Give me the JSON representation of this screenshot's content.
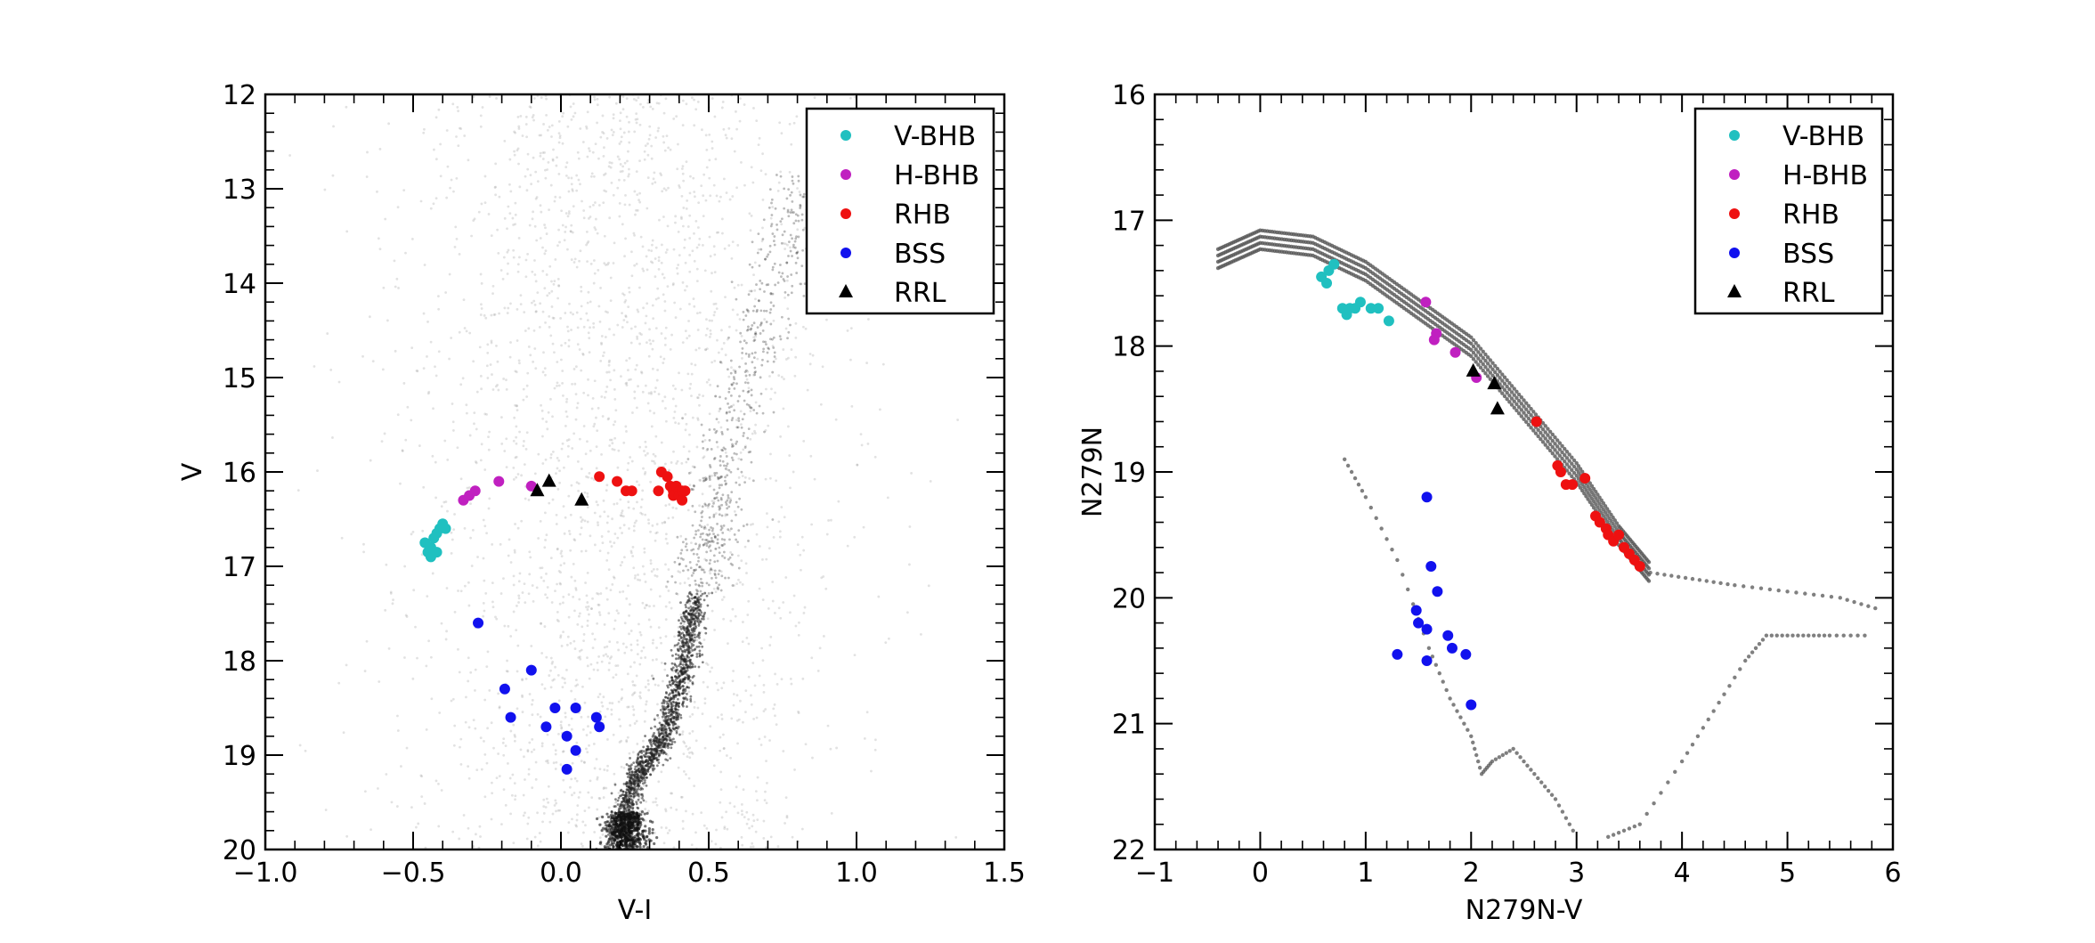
{
  "chart_data": [
    {
      "type": "scatter",
      "id": "left",
      "title": "",
      "xlabel": "V-I",
      "ylabel": "V",
      "xlim": [
        -1.0,
        1.5
      ],
      "ylim": [
        12,
        20
      ],
      "y_inverted": true,
      "xticks": [
        -1.0,
        -0.5,
        0.0,
        0.5,
        1.0,
        1.5
      ],
      "xtick_labels": [
        "−1.0",
        "−0.5",
        "0.0",
        "0.5",
        "1.0",
        "1.5"
      ],
      "yticks": [
        12,
        13,
        14,
        15,
        16,
        17,
        18,
        19,
        20
      ],
      "ytick_labels": [
        "12",
        "13",
        "14",
        "15",
        "16",
        "17",
        "18",
        "19",
        "20"
      ],
      "legend_position": "top-right",
      "background": {
        "name": "Field stars (grey cloud)",
        "color": "#8c8c8c",
        "description_points": {
          "red_giant_branch": [
            [
              0.2,
              19.9
            ],
            [
              0.23,
              19.4
            ],
            [
              0.28,
              19.1
            ],
            [
              0.35,
              18.8
            ],
            [
              0.4,
              18.3
            ],
            [
              0.43,
              17.8
            ],
            [
              0.46,
              17.3
            ],
            [
              0.5,
              16.8
            ],
            [
              0.53,
              16.4
            ],
            [
              0.56,
              15.8
            ],
            [
              0.62,
              15.0
            ],
            [
              0.7,
              14.2
            ],
            [
              0.78,
              13.4
            ],
            [
              0.85,
              12.8
            ]
          ],
          "main_sequence_turnoff": [
            0.22,
            19.6
          ]
        }
      },
      "series": [
        {
          "name": "V-BHB",
          "color": "#20c0c0",
          "marker": "circle",
          "points": [
            [
              -0.46,
              16.75
            ],
            [
              -0.45,
              16.85
            ],
            [
              -0.44,
              16.9
            ],
            [
              -0.44,
              16.8
            ],
            [
              -0.43,
              16.7
            ],
            [
              -0.42,
              16.85
            ],
            [
              -0.42,
              16.65
            ],
            [
              -0.41,
              16.6
            ],
            [
              -0.4,
              16.55
            ],
            [
              -0.39,
              16.6
            ]
          ]
        },
        {
          "name": "H-BHB",
          "color": "#c020c0",
          "marker": "circle",
          "points": [
            [
              -0.33,
              16.3
            ],
            [
              -0.31,
              16.25
            ],
            [
              -0.29,
              16.2
            ],
            [
              -0.21,
              16.1
            ],
            [
              -0.1,
              16.15
            ]
          ]
        },
        {
          "name": "RHB",
          "color": "#ee1111",
          "marker": "circle",
          "points": [
            [
              0.13,
              16.05
            ],
            [
              0.19,
              16.1
            ],
            [
              0.22,
              16.2
            ],
            [
              0.24,
              16.2
            ],
            [
              0.33,
              16.2
            ],
            [
              0.34,
              16.0
            ],
            [
              0.37,
              16.15
            ],
            [
              0.38,
              16.2
            ],
            [
              0.38,
              16.25
            ],
            [
              0.39,
              16.15
            ],
            [
              0.4,
              16.2
            ],
            [
              0.4,
              16.25
            ],
            [
              0.41,
              16.2
            ],
            [
              0.41,
              16.3
            ],
            [
              0.42,
              16.2
            ],
            [
              0.36,
              16.05
            ]
          ]
        },
        {
          "name": "BSS",
          "color": "#1111ee",
          "marker": "circle",
          "points": [
            [
              -0.28,
              17.6
            ],
            [
              -0.19,
              18.3
            ],
            [
              -0.17,
              18.6
            ],
            [
              -0.1,
              18.1
            ],
            [
              -0.05,
              18.7
            ],
            [
              -0.02,
              18.5
            ],
            [
              0.02,
              18.8
            ],
            [
              0.05,
              18.5
            ],
            [
              0.05,
              18.95
            ],
            [
              0.02,
              19.15
            ],
            [
              0.12,
              18.6
            ],
            [
              0.13,
              18.7
            ]
          ]
        },
        {
          "name": "RRL",
          "color": "#000000",
          "marker": "triangle",
          "points": [
            [
              -0.08,
              16.2
            ],
            [
              -0.04,
              16.1
            ],
            [
              0.07,
              16.3
            ]
          ]
        }
      ]
    },
    {
      "type": "scatter",
      "id": "right",
      "title": "",
      "xlabel": "N279N-V",
      "ylabel": "N279N",
      "xlim": [
        -1,
        6
      ],
      "ylim": [
        16,
        22
      ],
      "y_inverted": true,
      "xticks": [
        -1,
        0,
        1,
        2,
        3,
        4,
        5,
        6
      ],
      "xtick_labels": [
        "−1",
        "0",
        "1",
        "2",
        "3",
        "4",
        "5",
        "6"
      ],
      "yticks": [
        16,
        17,
        18,
        19,
        20,
        21,
        22
      ],
      "ytick_labels": [
        "16",
        "17",
        "18",
        "19",
        "20",
        "21",
        "22"
      ],
      "legend_position": "top-right",
      "background": {
        "name": "Models (grey dotted tracks)",
        "color": "#555555",
        "hb_model_ridge": [
          [
            -0.4,
            17.3
          ],
          [
            0.0,
            17.15
          ],
          [
            0.5,
            17.2
          ],
          [
            1.0,
            17.4
          ],
          [
            1.5,
            17.7
          ],
          [
            2.0,
            18.0
          ],
          [
            2.5,
            18.5
          ],
          [
            3.0,
            19.0
          ],
          [
            3.4,
            19.5
          ],
          [
            3.7,
            19.8
          ]
        ],
        "isochrone_a": [
          [
            0.8,
            18.9
          ],
          [
            1.0,
            19.2
          ],
          [
            1.3,
            19.7
          ],
          [
            1.6,
            20.4
          ],
          [
            1.8,
            20.8
          ],
          [
            2.0,
            21.1
          ],
          [
            2.1,
            21.4
          ],
          [
            2.2,
            21.3
          ],
          [
            2.4,
            21.2
          ],
          [
            2.6,
            21.4
          ],
          [
            2.8,
            21.6
          ],
          [
            3.0,
            21.9
          ]
        ],
        "isochrone_b": [
          [
            3.3,
            21.9
          ],
          [
            3.6,
            21.8
          ],
          [
            4.0,
            21.3
          ],
          [
            4.3,
            20.9
          ],
          [
            4.6,
            20.5
          ],
          [
            4.8,
            20.3
          ],
          [
            5.1,
            20.3
          ],
          [
            5.4,
            20.3
          ],
          [
            5.8,
            20.3
          ]
        ],
        "upper_branch": [
          [
            3.7,
            19.8
          ],
          [
            4.1,
            19.85
          ],
          [
            4.5,
            19.9
          ],
          [
            5.0,
            19.95
          ],
          [
            5.5,
            20.0
          ],
          [
            5.9,
            20.1
          ]
        ]
      },
      "series": [
        {
          "name": "V-BHB",
          "color": "#20c0c0",
          "marker": "circle",
          "points": [
            [
              0.58,
              17.45
            ],
            [
              0.63,
              17.5
            ],
            [
              0.65,
              17.4
            ],
            [
              0.7,
              17.35
            ],
            [
              0.78,
              17.7
            ],
            [
              0.82,
              17.75
            ],
            [
              0.85,
              17.7
            ],
            [
              0.9,
              17.7
            ],
            [
              0.95,
              17.65
            ],
            [
              1.05,
              17.7
            ],
            [
              1.12,
              17.7
            ],
            [
              1.22,
              17.8
            ]
          ]
        },
        {
          "name": "H-BHB",
          "color": "#c020c0",
          "marker": "circle",
          "points": [
            [
              1.57,
              17.65
            ],
            [
              1.65,
              17.95
            ],
            [
              1.67,
              17.9
            ],
            [
              1.85,
              18.05
            ],
            [
              2.05,
              18.25
            ]
          ]
        },
        {
          "name": "RHB",
          "color": "#ee1111",
          "marker": "circle",
          "points": [
            [
              2.62,
              18.6
            ],
            [
              2.82,
              18.95
            ],
            [
              2.85,
              19.0
            ],
            [
              2.9,
              19.1
            ],
            [
              2.96,
              19.1
            ],
            [
              3.08,
              19.05
            ],
            [
              3.18,
              19.35
            ],
            [
              3.22,
              19.4
            ],
            [
              3.28,
              19.45
            ],
            [
              3.3,
              19.5
            ],
            [
              3.35,
              19.55
            ],
            [
              3.4,
              19.5
            ],
            [
              3.45,
              19.6
            ],
            [
              3.5,
              19.65
            ],
            [
              3.55,
              19.7
            ],
            [
              3.6,
              19.75
            ]
          ]
        },
        {
          "name": "BSS",
          "color": "#1111ee",
          "marker": "circle",
          "points": [
            [
              1.58,
              19.2
            ],
            [
              1.62,
              19.75
            ],
            [
              1.68,
              19.95
            ],
            [
              1.48,
              20.1
            ],
            [
              1.5,
              20.2
            ],
            [
              1.58,
              20.25
            ],
            [
              1.78,
              20.3
            ],
            [
              1.82,
              20.4
            ],
            [
              1.95,
              20.45
            ],
            [
              1.3,
              20.45
            ],
            [
              1.58,
              20.5
            ],
            [
              2.0,
              20.85
            ]
          ]
        },
        {
          "name": "RRL",
          "color": "#000000",
          "marker": "triangle",
          "points": [
            [
              2.02,
              18.2
            ],
            [
              2.22,
              18.3
            ],
            [
              2.25,
              18.5
            ]
          ]
        }
      ]
    }
  ]
}
